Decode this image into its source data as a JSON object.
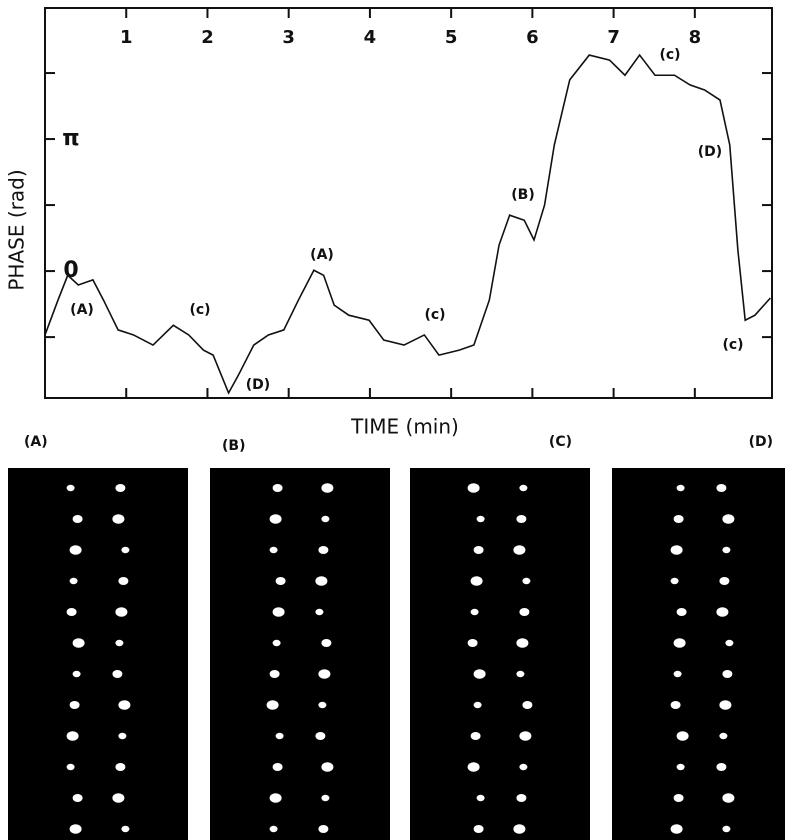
{
  "chart_data": {
    "type": "line",
    "x_label": "TIME (min)",
    "y_label": "PHASE (rad)",
    "x": [
      0,
      0.16,
      0.28,
      0.41,
      0.59,
      0.72,
      0.9,
      1.09,
      1.33,
      1.58,
      1.77,
      1.95,
      2.07,
      2.26,
      2.38,
      2.57,
      2.75,
      2.94,
      3.12,
      3.31,
      3.43,
      3.56,
      3.74,
      3.99,
      4.17,
      4.42,
      4.67,
      4.85,
      5.1,
      5.28,
      5.47,
      5.59,
      5.72,
      5.9,
      6.02,
      6.15,
      6.27,
      6.46,
      6.7,
      6.95,
      7.14,
      7.32,
      7.51,
      7.75,
      7.94,
      8.12,
      8.31,
      8.43,
      8.53,
      8.62,
      8.74,
      8.93
    ],
    "series": [
      {
        "color": "#111111",
        "values": [
          -1.52,
          -0.69,
          -0.1,
          -0.33,
          -0.21,
          -0.69,
          -1.4,
          -1.52,
          -1.76,
          -1.29,
          -1.52,
          -1.88,
          -2.0,
          -2.9,
          -2.48,
          -1.76,
          -1.52,
          -1.4,
          -0.69,
          0.02,
          -0.1,
          -0.81,
          -1.05,
          -1.17,
          -1.64,
          -1.76,
          -1.52,
          -2.0,
          -1.88,
          -1.76,
          -0.69,
          0.62,
          1.33,
          1.21,
          0.74,
          1.57,
          3.0,
          4.55,
          5.14,
          5.02,
          4.66,
          5.14,
          4.66,
          4.66,
          4.43,
          4.31,
          4.07,
          3.0,
          0.5,
          -1.17,
          -1.05,
          -0.64
        ]
      }
    ],
    "xlim": [
      0,
      8.95
    ],
    "xticks": [
      1,
      2,
      3,
      4,
      5,
      6,
      7,
      8
    ],
    "ylim": [
      -3.02,
      6.26
    ],
    "yticks": [
      0,
      {
        "value": 3.1416,
        "label": "π"
      }
    ],
    "yminor_ticks": [
      -1.5708,
      1.5708,
      4.7124
    ],
    "annotations": [
      "(A)",
      "(c)",
      "(D)",
      "(A)",
      "(c)",
      "(B)",
      "(c)",
      "(D)",
      "(c)"
    ],
    "panels": [
      "(A)",
      "(B)",
      "(C)",
      "(D)"
    ]
  }
}
